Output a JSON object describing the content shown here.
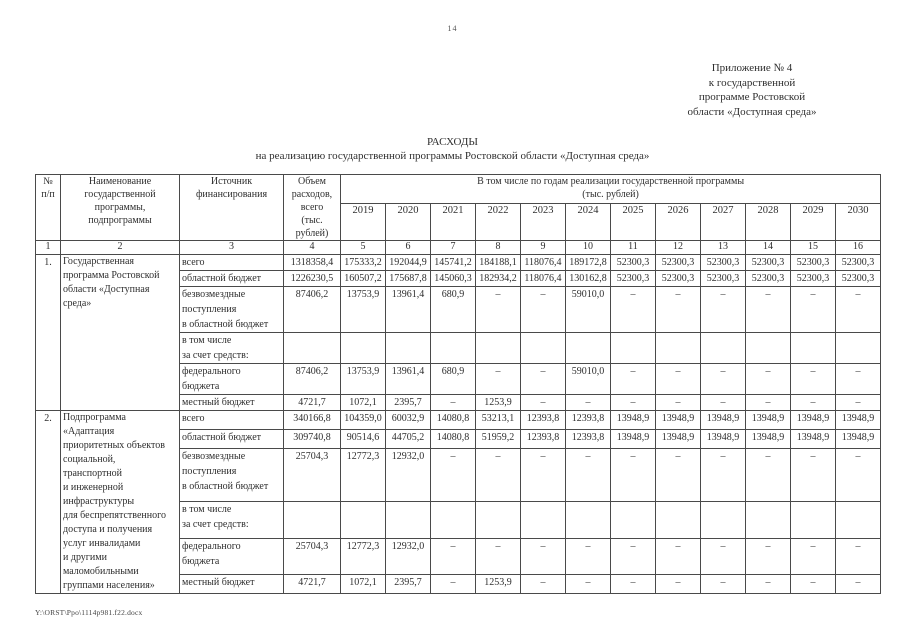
{
  "colors": {
    "ink": "#2e2e2e",
    "border": "#4a4a4a",
    "page_bg": "#ffffff"
  },
  "page": {
    "number": "14",
    "footer_path": "Y:\\ORST\\Ppo\\1114p981.f22.docx"
  },
  "appendix": {
    "lines": [
      "Приложение № 4",
      "к государственной",
      "программе Ростовской",
      "области «Доступная среда»"
    ]
  },
  "title": {
    "line1": "РАСХОДЫ",
    "line2": "на реализацию государственной программы Ростовской области «Доступная среда»"
  },
  "table": {
    "headers": {
      "num": "№\nп/п",
      "name": "Наименование\nгосударственной\nпрограммы,\nподпрограммы",
      "source": "Источник\nфинансирования",
      "volume": "Объем\nрасходов,\nвсего\n(тыс.\nрублей)",
      "years_group": "В том числе по годам реализации государственной программы\n(тыс. рублей)",
      "years": [
        "2019",
        "2020",
        "2021",
        "2022",
        "2023",
        "2024",
        "2025",
        "2026",
        "2027",
        "2028",
        "2029",
        "2030"
      ],
      "col_numbers": [
        "1",
        "2",
        "3",
        "4",
        "5",
        "6",
        "7",
        "8",
        "9",
        "10",
        "11",
        "12",
        "13",
        "14",
        "15",
        "16"
      ]
    },
    "groups": [
      {
        "num": "1.",
        "name": "Государственная\nпрограмма Ростовской\nобласти «Доступная\nсреда»",
        "rows": [
          {
            "source": "всего",
            "total": "1318358,4",
            "values": [
              "175333,2",
              "192044,9",
              "145741,2",
              "184188,1",
              "118076,4",
              "189172,8",
              "52300,3",
              "52300,3",
              "52300,3",
              "52300,3",
              "52300,3",
              "52300,3"
            ]
          },
          {
            "source": "областной бюджет",
            "total": "1226230,5",
            "values": [
              "160507,2",
              "175687,8",
              "145060,3",
              "182934,2",
              "118076,4",
              "130162,8",
              "52300,3",
              "52300,3",
              "52300,3",
              "52300,3",
              "52300,3",
              "52300,3"
            ]
          },
          {
            "source": "безвозмездные\nпоступления\nв областной бюджет",
            "total": "87406,2",
            "values": [
              "13753,9",
              "13961,4",
              "680,9",
              "–",
              "–",
              "59010,0",
              "–",
              "–",
              "–",
              "–",
              "–",
              "–"
            ]
          },
          {
            "source": "в том числе\nза счет средств:",
            "total": "",
            "values": [
              "",
              "",
              "",
              "",
              "",
              "",
              "",
              "",
              "",
              "",
              "",
              ""
            ]
          },
          {
            "source": "федерального\nбюджета",
            "total": "87406,2",
            "values": [
              "13753,9",
              "13961,4",
              "680,9",
              "–",
              "–",
              "59010,0",
              "–",
              "–",
              "–",
              "–",
              "–",
              "–"
            ]
          },
          {
            "source": "местный бюджет",
            "total": "4721,7",
            "values": [
              "1072,1",
              "2395,7",
              "–",
              "1253,9",
              "–",
              "–",
              "–",
              "–",
              "–",
              "–",
              "–",
              "–"
            ]
          }
        ]
      },
      {
        "num": "2.",
        "name": "Подпрограмма\n«Адаптация\nприоритетных объектов\nсоциальной,\nтранспортной\nи инженерной\nинфраструктуры\nдля беспрепятственного\nдоступа и получения\nуслуг инвалидами\nи другими\nмаломобильными\nгруппами населения»",
        "rows": [
          {
            "source": "всего",
            "total": "340166,8",
            "values": [
              "104359,0",
              "60032,9",
              "14080,8",
              "53213,1",
              "12393,8",
              "12393,8",
              "13948,9",
              "13948,9",
              "13948,9",
              "13948,9",
              "13948,9",
              "13948,9"
            ]
          },
          {
            "source": "областной бюджет",
            "total": "309740,8",
            "values": [
              "90514,6",
              "44705,2",
              "14080,8",
              "51959,2",
              "12393,8",
              "12393,8",
              "13948,9",
              "13948,9",
              "13948,9",
              "13948,9",
              "13948,9",
              "13948,9"
            ]
          },
          {
            "source": "безвозмездные\nпоступления\nв областной бюджет",
            "total": "25704,3",
            "values": [
              "12772,3",
              "12932,0",
              "–",
              "–",
              "–",
              "–",
              "–",
              "–",
              "–",
              "–",
              "–",
              "–"
            ]
          },
          {
            "source": "в том числе\nза счет средств:",
            "total": "",
            "values": [
              "",
              "",
              "",
              "",
              "",
              "",
              "",
              "",
              "",
              "",
              "",
              ""
            ]
          },
          {
            "source": "федерального\nбюджета",
            "total": "25704,3",
            "values": [
              "12772,3",
              "12932,0",
              "–",
              "–",
              "–",
              "–",
              "–",
              "–",
              "–",
              "–",
              "–",
              "–"
            ]
          },
          {
            "source": "местный бюджет",
            "total": "4721,7",
            "values": [
              "1072,1",
              "2395,7",
              "–",
              "1253,9",
              "–",
              "–",
              "–",
              "–",
              "–",
              "–",
              "–",
              "–"
            ]
          }
        ]
      }
    ]
  }
}
